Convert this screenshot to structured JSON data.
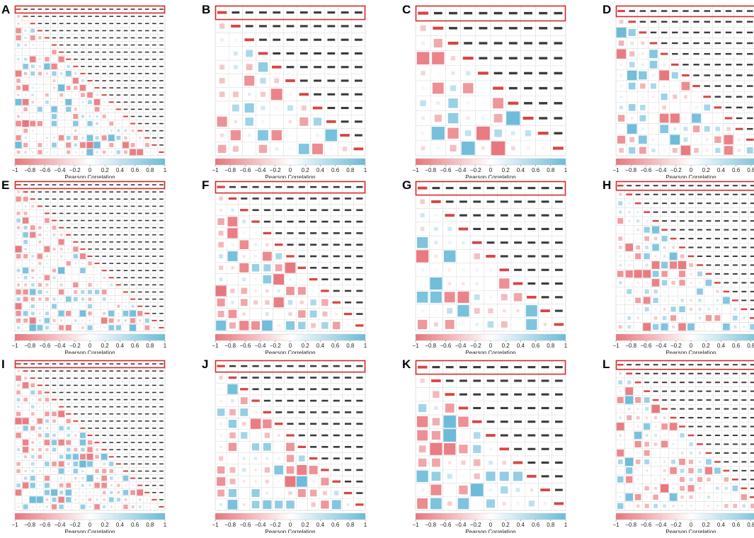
{
  "figure": {
    "colorbar": {
      "ticks": [
        "−1",
        "−0.8",
        "−0.6",
        "−0.4",
        "−0.2",
        "0",
        "0.2",
        "0.4",
        "0.6",
        "0.8",
        "1"
      ],
      "label": "Pearson Correlation",
      "low_color": "#e8767c",
      "mid_color": "#ffffff",
      "high_color": "#6cbbd9"
    },
    "highlight_color": "#d42b2b"
  },
  "chart_data": [
    {
      "panel": "A",
      "type": "heatmap",
      "rows": 21,
      "highlight": "first-row",
      "seed": 11,
      "xlabel": "Pearson Correlation",
      "range": [
        -1,
        1
      ]
    },
    {
      "panel": "B",
      "type": "heatmap",
      "rows": 11,
      "highlight": "first-row",
      "seed": 23,
      "xlabel": "Pearson Correlation",
      "range": [
        -1,
        1
      ]
    },
    {
      "panel": "C",
      "type": "heatmap",
      "rows": 10,
      "highlight": "first-row",
      "seed": 37,
      "xlabel": "Pearson Correlation",
      "range": [
        -1,
        1
      ]
    },
    {
      "panel": "D",
      "type": "heatmap",
      "rows": 14,
      "highlight": "first-row",
      "seed": 41,
      "xlabel": "Pearson Correlation",
      "range": [
        -1,
        1
      ]
    },
    {
      "panel": "E",
      "type": "heatmap",
      "rows": 21,
      "highlight": "first-row",
      "seed": 53,
      "xlabel": "Pearson Correlation",
      "range": [
        -1,
        1
      ]
    },
    {
      "panel": "F",
      "type": "heatmap",
      "rows": 13,
      "highlight": "first-row",
      "seed": 67,
      "xlabel": "Pearson Correlation",
      "range": [
        -1,
        1
      ]
    },
    {
      "panel": "G",
      "type": "heatmap",
      "rows": 11,
      "highlight": "first-row",
      "seed": 71,
      "xlabel": "Pearson Correlation",
      "range": [
        -1,
        1
      ]
    },
    {
      "panel": "H",
      "type": "heatmap",
      "rows": 17,
      "highlight": "first-row",
      "seed": 83,
      "xlabel": "Pearson Correlation",
      "range": [
        -1,
        1
      ]
    },
    {
      "panel": "I",
      "type": "heatmap",
      "rows": 21,
      "highlight": "first-row",
      "seed": 97,
      "xlabel": "Pearson Correlation",
      "range": [
        -1,
        1
      ]
    },
    {
      "panel": "J",
      "type": "heatmap",
      "rows": 13,
      "highlight": "first-row",
      "seed": 101,
      "xlabel": "Pearson Correlation",
      "range": [
        -1,
        1
      ]
    },
    {
      "panel": "K",
      "type": "heatmap",
      "rows": 11,
      "highlight": "first-row",
      "seed": 113,
      "xlabel": "Pearson Correlation",
      "range": [
        -1,
        1
      ]
    },
    {
      "panel": "L",
      "type": "heatmap",
      "rows": 17,
      "highlight": "first-row",
      "seed": 127,
      "xlabel": "Pearson Correlation",
      "range": [
        -1,
        1
      ]
    }
  ]
}
